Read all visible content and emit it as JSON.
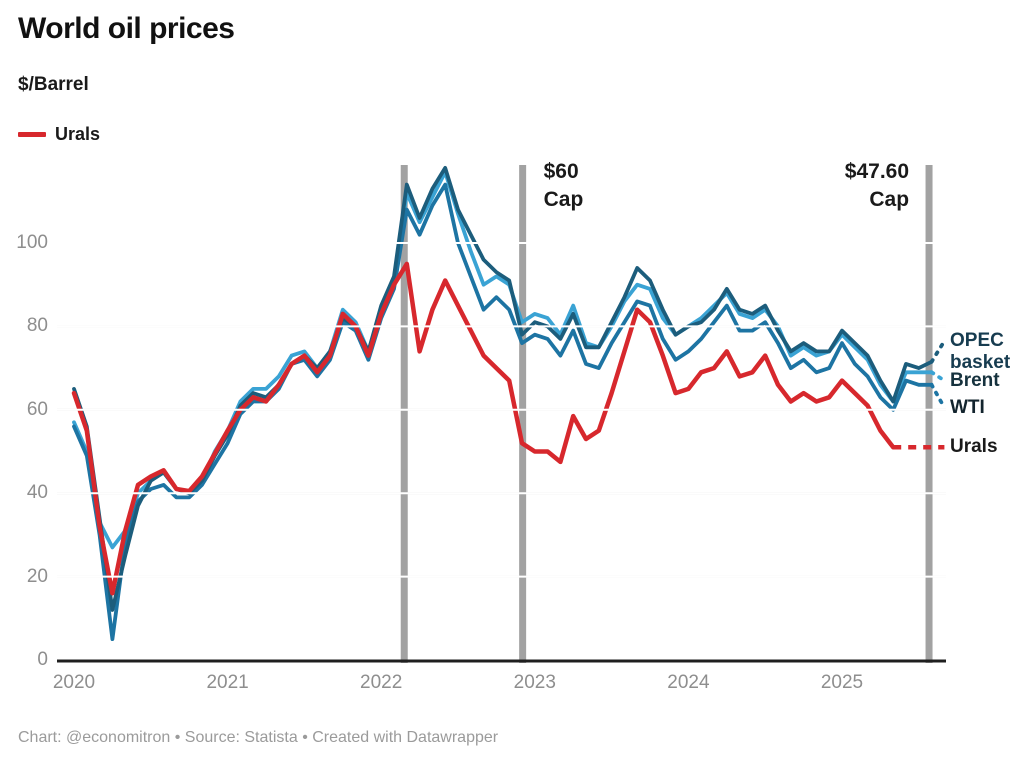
{
  "header": {
    "title": "World oil prices",
    "subtitle": "$/Barrel"
  },
  "legend": {
    "items": [
      {
        "label": "Urals",
        "color": "#d7282d"
      }
    ]
  },
  "chart_data": {
    "type": "line",
    "title": "World oil prices",
    "ylabel": "$/Barrel",
    "x_start": "2020-01",
    "x_end": "2025-09",
    "x_tick_labels": [
      "2020",
      "2021",
      "2022",
      "2023",
      "2024",
      "2025"
    ],
    "y_ticks": [
      0,
      20,
      40,
      60,
      80,
      100
    ],
    "ylim": [
      0,
      119
    ],
    "grid": "horizontal-white-over-series",
    "legend_position": "top-left-and-right-edge-direct-labels",
    "series": [
      {
        "name": "OPEC basket",
        "color": "#1c5d7c",
        "label_color": "#173c50",
        "dash_from_index": 67,
        "values": [
          65,
          56,
          34,
          12,
          25,
          37,
          43,
          45,
          41,
          40,
          43,
          49,
          54,
          61,
          64,
          63,
          66,
          71,
          73,
          70,
          74,
          82,
          80,
          74,
          85,
          92,
          114,
          106,
          113,
          118,
          108,
          102,
          96,
          93,
          91,
          78,
          81,
          80,
          77,
          83,
          75,
          75,
          81,
          87,
          94,
          91,
          84,
          78,
          80,
          81,
          84,
          89,
          84,
          83,
          85,
          79,
          74,
          76,
          74,
          74,
          79,
          76,
          73,
          67,
          62,
          71,
          70,
          71.5,
          76.5
        ]
      },
      {
        "name": "Brent",
        "color": "#3aa3d4",
        "label_color": "#16323e",
        "dash_from_index": 67,
        "values": [
          57,
          50,
          33,
          27,
          31,
          40,
          43,
          45,
          41,
          40,
          43,
          50,
          55,
          62,
          65,
          65,
          68,
          73,
          74,
          70,
          74,
          84,
          81,
          74,
          84,
          91,
          112,
          105,
          111,
          117,
          107,
          98,
          90,
          92,
          90,
          81,
          83,
          82,
          78,
          85,
          76,
          75,
          80,
          86,
          90,
          89,
          82,
          78,
          80,
          82,
          85,
          88,
          83,
          82,
          84,
          80,
          73,
          75,
          73,
          74,
          78,
          75,
          72,
          66,
          62,
          69,
          69,
          69,
          67
        ]
      },
      {
        "name": "WTI",
        "color": "#1d74a3",
        "label_color": "#13242e",
        "dash_from_index": 67,
        "values": [
          56,
          49,
          30,
          5,
          28,
          38,
          41,
          42,
          39,
          39,
          42,
          47,
          52,
          59,
          62,
          62,
          65,
          71,
          72,
          68,
          72,
          81,
          79,
          72,
          82,
          89,
          108,
          102,
          109,
          114,
          100,
          92,
          84,
          87,
          84,
          76,
          78,
          77,
          73,
          79,
          71,
          70,
          76,
          81,
          86,
          85,
          77,
          72,
          74,
          77,
          81,
          85,
          79,
          79,
          81,
          76,
          70,
          72,
          69,
          70,
          76,
          71,
          68,
          63,
          60,
          67,
          66,
          66,
          60.5
        ]
      },
      {
        "name": "Urals",
        "color": "#d7282d",
        "label_color": "#1a1a1a",
        "dash_from_index": 64,
        "values": [
          64,
          55,
          32,
          16,
          31,
          42,
          44,
          45.5,
          41,
          40.5,
          44,
          49.5,
          55,
          60,
          63,
          62,
          66,
          71,
          73,
          69,
          73,
          83,
          80,
          73,
          83,
          90,
          95,
          74,
          84,
          91,
          85,
          79,
          73,
          70,
          67,
          52,
          50,
          50,
          47.5,
          58.5,
          53,
          55,
          64,
          74,
          84,
          81,
          73,
          64,
          65,
          69,
          70,
          74,
          68,
          69,
          73,
          66,
          62,
          64,
          62,
          63,
          67,
          64,
          61,
          55,
          51,
          51,
          51,
          51,
          51
        ]
      }
    ],
    "annotations": {
      "vlines": [
        {
          "label_lines": [],
          "month_index": 25.8,
          "side": "none"
        },
        {
          "label_lines": [
            "$60",
            "Cap"
          ],
          "month_index": 35.05,
          "side": "right"
        },
        {
          "label_lines": [
            "$47.60",
            "Cap"
          ],
          "month_index": 66.8,
          "side": "left"
        }
      ],
      "vline_color": "#a2a2a2"
    }
  },
  "footer": {
    "text": "Chart: @economitron • Source: Statista • Created with Datawrapper"
  }
}
